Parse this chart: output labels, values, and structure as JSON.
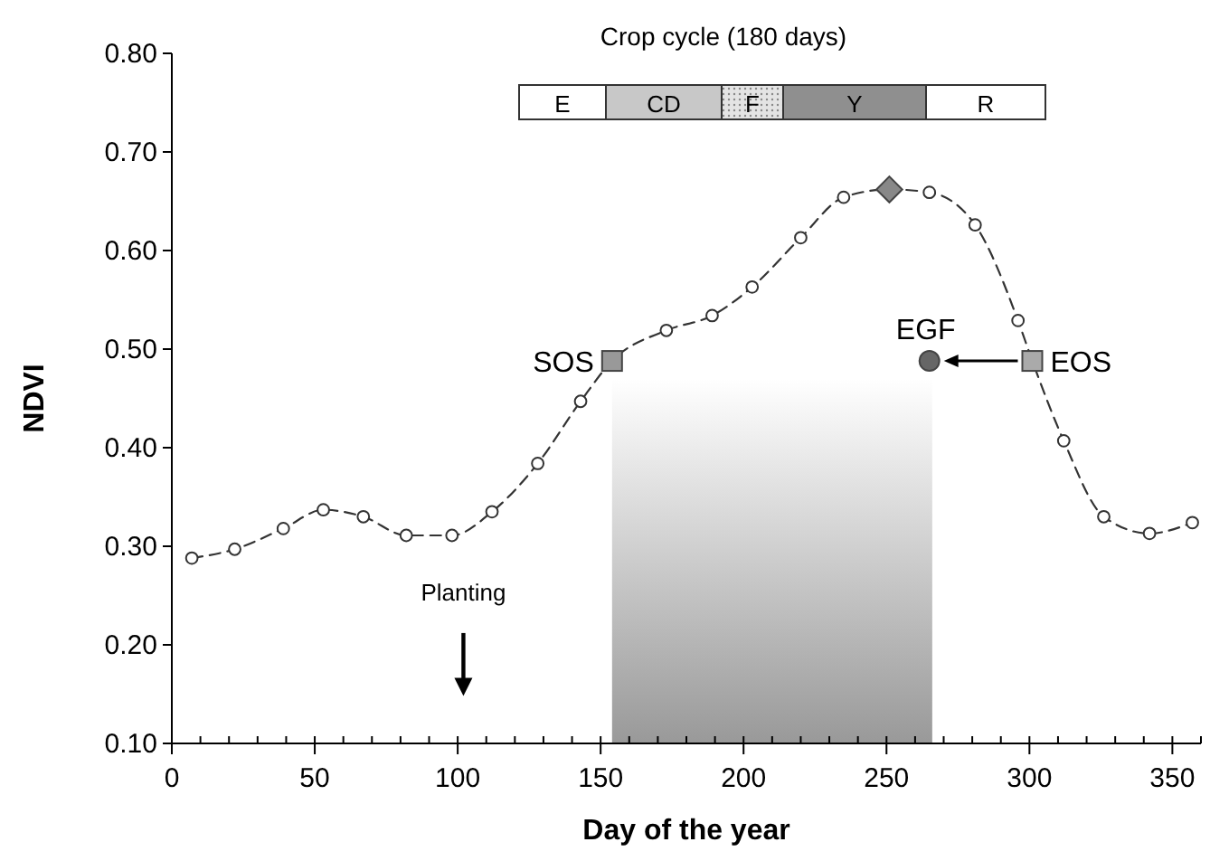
{
  "chart_data": {
    "type": "line",
    "xlabel": "Day of the year",
    "ylabel": "NDVI",
    "xlim": [
      0,
      360
    ],
    "xticks": [
      0,
      {
        "value": 10,
        "label": null
      },
      {
        "value": 20,
        "label": null
      },
      {
        "value": 30,
        "label": null
      },
      {
        "value": 40,
        "label": null
      },
      50,
      {
        "value": 60,
        "label": null
      },
      {
        "value": 70,
        "label": null
      },
      {
        "value": 80,
        "label": null
      },
      {
        "value": 90,
        "label": null
      },
      100,
      {
        "value": 110,
        "label": null
      },
      {
        "value": 120,
        "label": null
      },
      {
        "value": 130,
        "label": null
      },
      {
        "value": 140,
        "label": null
      },
      150,
      {
        "value": 160,
        "label": null
      },
      {
        "value": 170,
        "label": null
      },
      {
        "value": 180,
        "label": null
      },
      {
        "value": 190,
        "label": null
      },
      200,
      {
        "value": 210,
        "label": null
      },
      {
        "value": 220,
        "label": null
      },
      {
        "value": 230,
        "label": null
      },
      {
        "value": 240,
        "label": null
      },
      250,
      {
        "value": 260,
        "label": null
      },
      {
        "value": 270,
        "label": null
      },
      {
        "value": 280,
        "label": null
      },
      {
        "value": 290,
        "label": null
      },
      300,
      {
        "value": 310,
        "label": null
      },
      {
        "value": 320,
        "label": null
      },
      {
        "value": 330,
        "label": null
      },
      {
        "value": 340,
        "label": null
      },
      350,
      {
        "value": 360,
        "label": null
      }
    ],
    "ylim": [
      0.1,
      0.8
    ],
    "yticks": [
      {
        "value": 0.1,
        "label": "0.10"
      },
      {
        "value": 0.2,
        "label": "0.20"
      },
      {
        "value": 0.3,
        "label": "0.30"
      },
      {
        "value": 0.4,
        "label": "0.40"
      },
      {
        "value": 0.5,
        "label": "0.50"
      },
      {
        "value": 0.6,
        "label": "0.60"
      },
      {
        "value": 0.7,
        "label": "0.70"
      },
      {
        "value": 0.8,
        "label": "0.80"
      }
    ],
    "grid": false,
    "series": [
      {
        "color": "#333333",
        "marker": "circle",
        "line_style": "dashed",
        "x": [
          7,
          22,
          39,
          53,
          67,
          82,
          98,
          112,
          128,
          143,
          154,
          173,
          189,
          203,
          220,
          235,
          251,
          265,
          281,
          296,
          301,
          312,
          326,
          342,
          357
        ],
        "values": [
          0.288,
          0.297,
          0.318,
          0.337,
          0.33,
          0.311,
          0.311,
          0.335,
          0.384,
          0.447,
          0.488,
          0.519,
          0.534,
          0.563,
          0.613,
          0.654,
          0.662,
          0.659,
          0.626,
          0.529,
          0.488,
          0.407,
          0.33,
          0.313,
          0.324
        ]
      },
      {
        "type": "scatter",
        "name": "SOS",
        "color": "#999999",
        "marker": "square",
        "x": [
          154
        ],
        "values": [
          0.488
        ]
      },
      {
        "type": "scatter",
        "color": "#888888",
        "marker": "diamond",
        "x": [
          251
        ],
        "values": [
          0.662
        ]
      },
      {
        "type": "scatter",
        "name": "EGF",
        "color": "#666666",
        "marker": "circle",
        "x": [
          265
        ],
        "values": [
          0.488
        ]
      },
      {
        "type": "scatter",
        "name": "EOS",
        "color": "#aaaaaa",
        "marker": "square",
        "x": [
          301
        ],
        "values": [
          0.488
        ]
      }
    ],
    "bands": [
      {
        "axis": "x",
        "from": 154,
        "to": 266,
        "color": "#999999"
      }
    ],
    "annotations": [
      "Planting",
      "Crop cycle (180 days)",
      "E",
      "CD",
      "F",
      "Y",
      "R"
    ]
  }
}
